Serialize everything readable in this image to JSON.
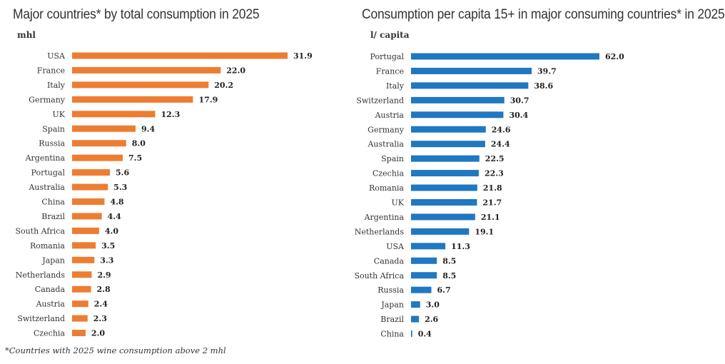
{
  "chart_data": [
    {
      "type": "bar",
      "orientation": "horizontal",
      "title": "Major countries* by total consumption in 2025",
      "unit": "mhl",
      "color": "#ED7D31",
      "categories": [
        "USA",
        "France",
        "Italy",
        "Germany",
        "UK",
        "Spain",
        "Russia",
        "Argentina",
        "Portugal",
        "Australia",
        "China",
        "Brazil",
        "South Africa",
        "Romania",
        "Japan",
        "Netherlands",
        "Canada",
        "Austria",
        "Switzerland",
        "Czechia"
      ],
      "values": [
        31.9,
        22.0,
        20.2,
        17.9,
        12.3,
        9.4,
        8.0,
        7.5,
        5.6,
        5.3,
        4.8,
        4.4,
        4.0,
        3.5,
        3.3,
        2.9,
        2.8,
        2.4,
        2.3,
        2.0
      ],
      "xlim": [
        0,
        31.9
      ]
    },
    {
      "type": "bar",
      "orientation": "horizontal",
      "title": "Consumption per capita 15+ in major consuming countries* in 2025",
      "unit": "l/ capita",
      "color": "#1F78C1",
      "categories": [
        "Portugal",
        "France",
        "Italy",
        "Switzerland",
        "Austria",
        "Germany",
        "Australia",
        "Spain",
        "Czechia",
        "Romania",
        "UK",
        "Argentina",
        "Netherlands",
        "USA",
        "Canada",
        "South Africa",
        "Russia",
        "Japan",
        "Brazil",
        "China"
      ],
      "values": [
        62.0,
        39.7,
        38.6,
        30.7,
        30.4,
        24.6,
        24.4,
        22.5,
        22.3,
        21.8,
        21.7,
        21.1,
        19.1,
        11.3,
        8.5,
        8.5,
        6.7,
        3.0,
        2.6,
        0.4
      ],
      "xlim": [
        0,
        62.0
      ]
    }
  ],
  "footnote": "*Countries with 2025 wine consumption above 2 mhl"
}
